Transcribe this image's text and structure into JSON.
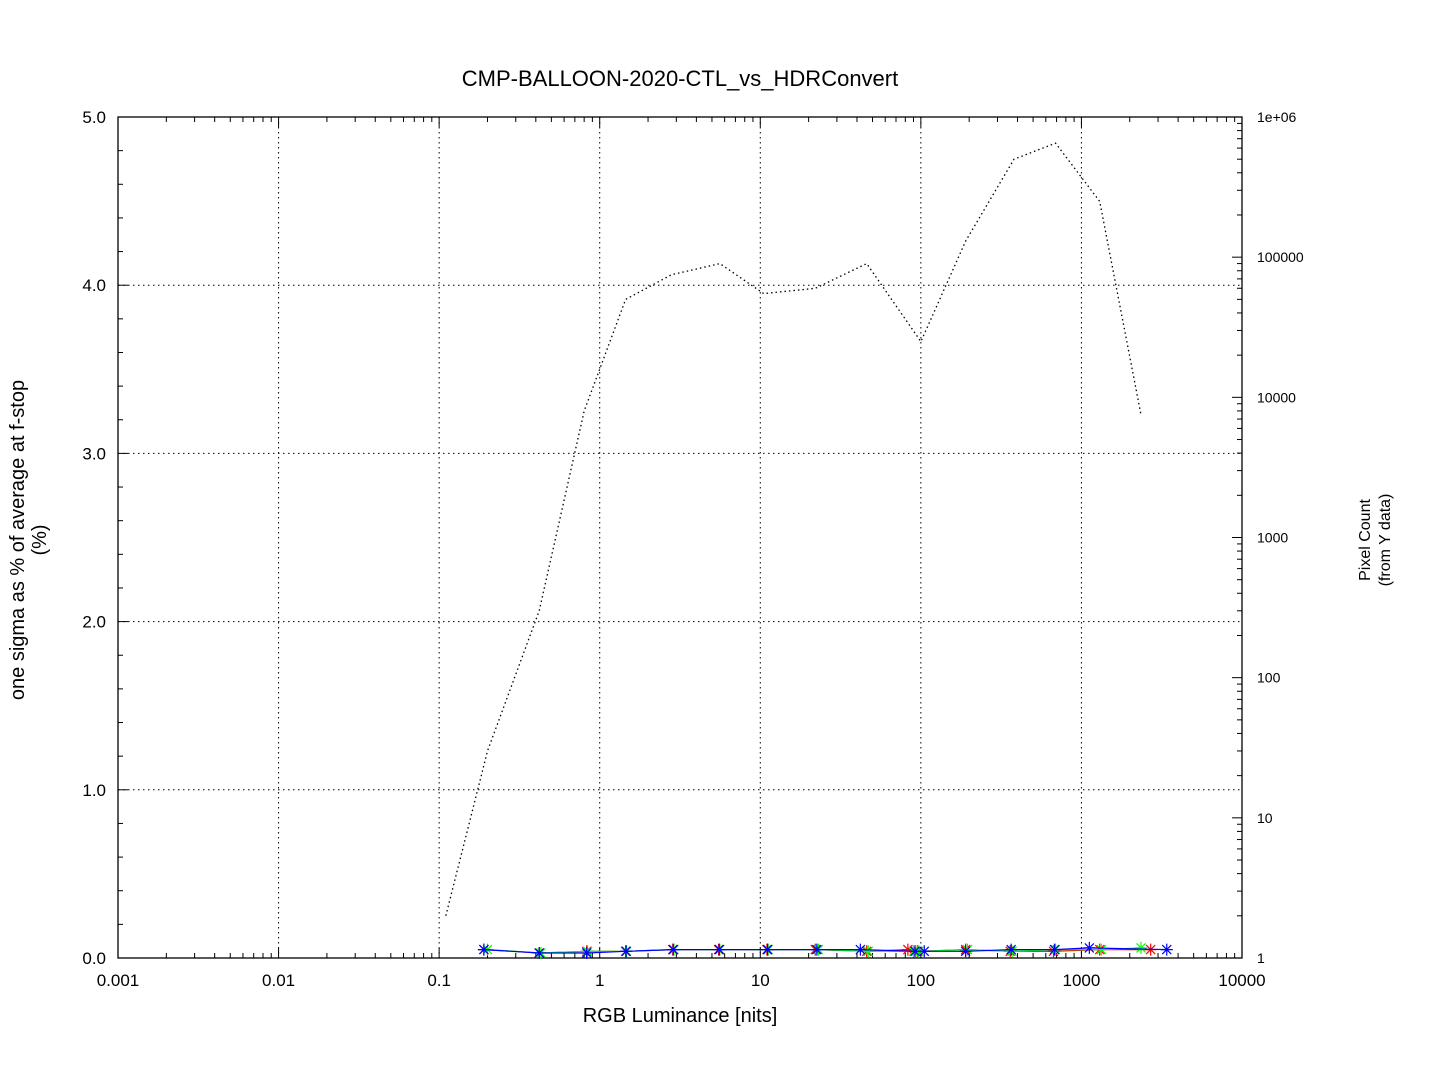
{
  "chart_data": {
    "type": "line",
    "title": "CMP-BALLOON-2020-CTL_vs_HDRConvert",
    "xlabel": "RGB Luminance [nits]",
    "ylabel": "one sigma as % of average at f-stop",
    "ylabel_unit": "(%)",
    "y2label": "Pixel Count",
    "y2label_sub": "(from Y data)",
    "x_scale": "log",
    "xlim": [
      0.001,
      10000
    ],
    "ylim": [
      0,
      5
    ],
    "y2_scale": "log",
    "y2lim": [
      1,
      1000000
    ],
    "grid": true,
    "x_ticks": [
      {
        "value": 0.001,
        "label": "0.001"
      },
      {
        "value": 0.01,
        "label": "0.01"
      },
      {
        "value": 0.1,
        "label": "0.1"
      },
      {
        "value": 1,
        "label": "1"
      },
      {
        "value": 10,
        "label": "10"
      },
      {
        "value": 100,
        "label": "100"
      },
      {
        "value": 1000,
        "label": "1000"
      },
      {
        "value": 10000,
        "label": "10000"
      }
    ],
    "y_ticks": [
      {
        "value": 0,
        "label": "0.0"
      },
      {
        "value": 1,
        "label": "1.0"
      },
      {
        "value": 2,
        "label": "2.0"
      },
      {
        "value": 3,
        "label": "3.0"
      },
      {
        "value": 4,
        "label": "4.0"
      },
      {
        "value": 5,
        "label": "5.0"
      }
    ],
    "y2_ticks": [
      {
        "value": 1,
        "label": "1"
      },
      {
        "value": 10,
        "label": "10"
      },
      {
        "value": 100,
        "label": "100"
      },
      {
        "value": 1000,
        "label": "1000"
      },
      {
        "value": 10000,
        "label": "10000"
      },
      {
        "value": 100000,
        "label": "100000"
      },
      {
        "value": 1000000,
        "label": "1e+06"
      }
    ],
    "series": [
      {
        "axis": "y",
        "color": "#ff0000",
        "marker": "star",
        "x": [
          0.19,
          0.42,
          0.83,
          1.45,
          2.85,
          5.5,
          11,
          22,
          46,
          83,
          95,
          190,
          360,
          670,
          1300,
          2700
        ],
        "y": [
          0.05,
          0.03,
          0.04,
          0.04,
          0.05,
          0.05,
          0.05,
          0.05,
          0.04,
          0.05,
          0.04,
          0.05,
          0.04,
          0.04,
          0.05,
          0.05
        ]
      },
      {
        "axis": "y",
        "color": "#00ff00",
        "marker": "star",
        "x": [
          0.2,
          0.43,
          0.84,
          1.47,
          2.9,
          5.6,
          11.2,
          23,
          47,
          90,
          97,
          195,
          370,
          690,
          1330,
          2350
        ],
        "y": [
          0.05,
          0.03,
          0.04,
          0.04,
          0.05,
          0.05,
          0.05,
          0.05,
          0.04,
          0.04,
          0.04,
          0.05,
          0.04,
          0.05,
          0.05,
          0.06
        ]
      },
      {
        "axis": "y",
        "color": "#0000ff",
        "marker": "star",
        "x": [
          0.19,
          0.42,
          0.83,
          1.46,
          2.87,
          5.55,
          11.1,
          22.5,
          42,
          92,
          105,
          190,
          365,
          680,
          1120,
          3400
        ],
        "y": [
          0.05,
          0.03,
          0.03,
          0.04,
          0.05,
          0.05,
          0.05,
          0.05,
          0.05,
          0.04,
          0.04,
          0.04,
          0.05,
          0.05,
          0.06,
          0.05
        ]
      },
      {
        "axis": "y2",
        "color": "#000000",
        "style": "dotted",
        "x": [
          0.11,
          0.2,
          0.42,
          0.8,
          1.45,
          2.8,
          5.6,
          10.5,
          22,
          46,
          100,
          190,
          380,
          690,
          1300,
          2350
        ],
        "y": [
          2,
          30,
          300,
          8000,
          50000,
          75000,
          90000,
          55000,
          60000,
          90000,
          25000,
          130000,
          500000,
          650000,
          250000,
          7500
        ]
      }
    ]
  }
}
